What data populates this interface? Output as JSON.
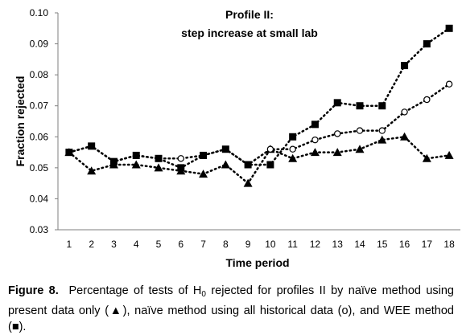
{
  "chart_data": {
    "type": "line",
    "title": "",
    "annotation": [
      "Profile II:",
      "step increase at small lab"
    ],
    "xlabel": "Time period",
    "ylabel": "Fraction rejected",
    "x": [
      1,
      2,
      3,
      4,
      5,
      6,
      7,
      8,
      9,
      10,
      11,
      12,
      13,
      14,
      15,
      16,
      17,
      18
    ],
    "xlim": [
      0.5,
      18.5
    ],
    "ylim": [
      0.03,
      0.1
    ],
    "yticks": [
      "0.03",
      "0.04",
      "0.05",
      "0.06",
      "0.07",
      "0.08",
      "0.09",
      "0.10"
    ],
    "grid": false,
    "series": [
      {
        "marker": "triangle",
        "values": [
          0.055,
          0.049,
          0.051,
          0.051,
          0.05,
          0.049,
          0.048,
          0.051,
          0.045,
          0.056,
          0.053,
          0.055,
          0.055,
          0.056,
          0.059,
          0.06,
          0.053,
          0.054
        ]
      },
      {
        "marker": "circle",
        "values": [
          0.055,
          0.057,
          0.052,
          0.054,
          0.053,
          0.053,
          0.054,
          0.056,
          0.051,
          0.056,
          0.056,
          0.059,
          0.061,
          0.062,
          0.062,
          0.068,
          0.072,
          0.077
        ]
      },
      {
        "marker": "square",
        "values": [
          0.055,
          0.057,
          0.052,
          0.054,
          0.053,
          0.05,
          0.054,
          0.056,
          0.051,
          0.051,
          0.06,
          0.064,
          0.071,
          0.07,
          0.07,
          0.083,
          0.09,
          0.095
        ]
      }
    ]
  },
  "caption": {
    "label": "Figure 8.",
    "text_before_sub": "Percentage of tests of H",
    "subscript": "0",
    "text_after_sub": " rejected for profiles II by naïve method using present data only (▲), naïve method using all historical data (o), and WEE method (■)."
  }
}
